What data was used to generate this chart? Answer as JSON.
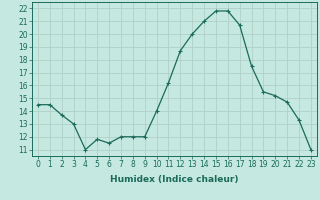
{
  "x": [
    0,
    1,
    2,
    3,
    4,
    5,
    6,
    7,
    8,
    9,
    10,
    11,
    12,
    13,
    14,
    15,
    16,
    17,
    18,
    19,
    20,
    21,
    22,
    23
  ],
  "y": [
    14.5,
    14.5,
    13.7,
    13.0,
    11.0,
    11.8,
    11.5,
    12.0,
    12.0,
    12.0,
    14.0,
    16.2,
    18.7,
    20.0,
    21.0,
    21.8,
    21.8,
    20.7,
    17.5,
    15.5,
    15.2,
    14.7,
    13.3,
    11.0
  ],
  "line_color": "#1a6b5a",
  "marker": "+",
  "marker_size": 3,
  "marker_lw": 0.8,
  "bg_color": "#c5e8e0",
  "grid_color": "#b0d0c8",
  "xlabel": "Humidex (Indice chaleur)",
  "xlim": [
    -0.5,
    23.5
  ],
  "ylim": [
    10.5,
    22.5
  ],
  "yticks": [
    11,
    12,
    13,
    14,
    15,
    16,
    17,
    18,
    19,
    20,
    21,
    22
  ],
  "xticks": [
    0,
    1,
    2,
    3,
    4,
    5,
    6,
    7,
    8,
    9,
    10,
    11,
    12,
    13,
    14,
    15,
    16,
    17,
    18,
    19,
    20,
    21,
    22,
    23
  ],
  "tick_fontsize": 5.5,
  "label_fontsize": 6.5,
  "linewidth": 0.9
}
